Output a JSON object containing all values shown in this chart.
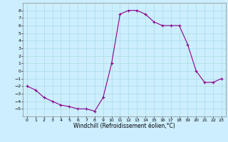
{
  "x": [
    0,
    1,
    2,
    3,
    4,
    5,
    6,
    7,
    8,
    9,
    10,
    11,
    12,
    13,
    14,
    15,
    16,
    17,
    18,
    19,
    20,
    21,
    22,
    23
  ],
  "y": [
    -2,
    -2.5,
    -3.5,
    -4,
    -4.5,
    -4.7,
    -5,
    -5,
    -5.3,
    -3.5,
    1,
    7.5,
    8,
    8,
    7.5,
    6.5,
    6,
    6,
    6,
    3.5,
    0,
    -1.5,
    -1.5,
    -1
  ],
  "line_color": "#8B008B",
  "marker": "+",
  "marker_color": "#8B008B",
  "bg_color": "#cceeff",
  "grid_color": "#aadddd",
  "xlabel": "Windchill (Refroidissement éolien,°C)",
  "xlim": [
    -0.5,
    23.5
  ],
  "ylim": [
    -6,
    9
  ],
  "yticks": [
    -5,
    -4,
    -3,
    -2,
    -1,
    0,
    1,
    2,
    3,
    4,
    5,
    6,
    7,
    8
  ],
  "xticks": [
    0,
    1,
    2,
    3,
    4,
    5,
    6,
    7,
    8,
    9,
    10,
    11,
    12,
    13,
    14,
    15,
    16,
    17,
    18,
    19,
    20,
    21,
    22,
    23
  ],
  "tick_fontsize": 4.5,
  "xlabel_fontsize": 5.5,
  "line_width": 0.8,
  "marker_size": 3
}
